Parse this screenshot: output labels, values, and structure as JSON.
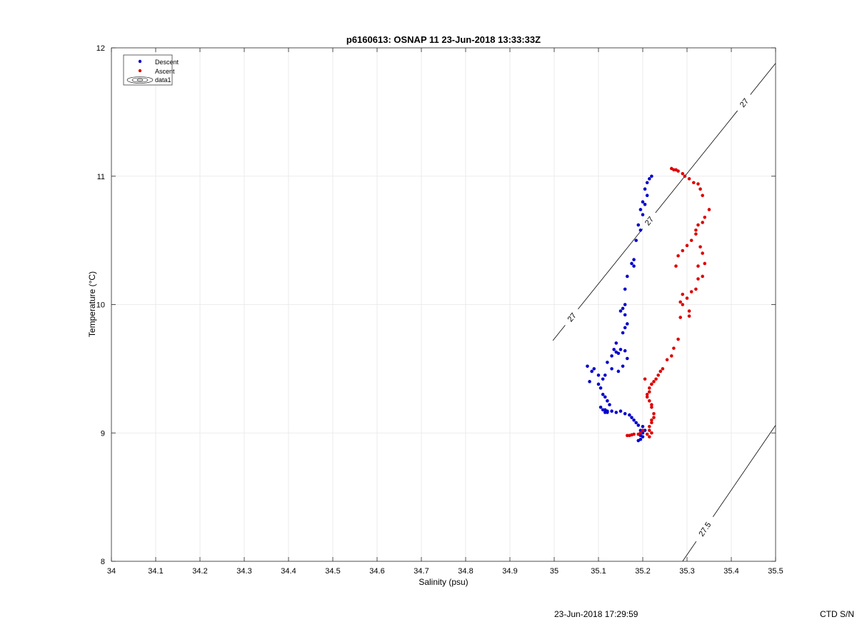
{
  "chart_data": {
    "type": "scatter",
    "title": "p6160613: OSNAP 11 23-Jun-2018 13:33:33Z",
    "xlabel": "Salinity (psu)",
    "ylabel": "Temperature (°C)",
    "xlim": [
      34,
      35.5
    ],
    "ylim": [
      8,
      12
    ],
    "xticks": [
      "34",
      "34.1",
      "34.2",
      "34.3",
      "34.4",
      "34.5",
      "34.6",
      "34.7",
      "34.8",
      "34.9",
      "35",
      "35.1",
      "35.2",
      "35.3",
      "35.4",
      "35.5"
    ],
    "yticks": [
      "8",
      "9",
      "10",
      "11",
      "12"
    ],
    "grid": true,
    "legend": {
      "placement": "top-left",
      "entries": [
        "Descent",
        "Ascent",
        "data1"
      ]
    },
    "colors": {
      "descent": "#0000cc",
      "ascent": "#dd0000",
      "contour": "#000000",
      "grid": "#e6e6e6"
    },
    "series": [
      {
        "name": "Descent",
        "x": [
          35.22,
          35.215,
          35.21,
          35.205,
          35.21,
          35.2,
          35.205,
          35.195,
          35.2,
          35.19,
          35.195,
          35.185,
          35.18,
          35.18,
          35.175,
          35.165,
          35.16,
          35.16,
          35.155,
          35.15,
          35.16,
          35.165,
          35.16,
          35.155,
          35.14,
          35.135,
          35.14,
          35.13,
          35.145,
          35.15,
          35.16,
          35.165,
          35.155,
          35.145,
          35.13,
          35.12,
          35.115,
          35.11,
          35.1,
          35.09,
          35.085,
          35.075,
          35.08,
          35.1,
          35.105,
          35.11,
          35.12,
          35.125,
          35.115,
          35.105,
          35.11,
          35.115,
          35.12,
          35.115,
          35.12,
          35.13,
          35.14,
          35.15,
          35.16,
          35.17,
          35.175,
          35.18,
          35.185,
          35.19,
          35.2,
          35.205,
          35.2,
          35.195,
          35.2,
          35.195,
          35.19,
          35.195
        ],
        "y": [
          11.0,
          10.98,
          10.95,
          10.9,
          10.85,
          10.8,
          10.78,
          10.74,
          10.7,
          10.62,
          10.58,
          10.5,
          10.35,
          10.3,
          10.32,
          10.22,
          10.12,
          10.0,
          9.97,
          9.95,
          9.92,
          9.85,
          9.82,
          9.78,
          9.7,
          9.65,
          9.63,
          9.6,
          9.62,
          9.65,
          9.64,
          9.58,
          9.52,
          9.48,
          9.5,
          9.55,
          9.45,
          9.42,
          9.45,
          9.5,
          9.48,
          9.52,
          9.4,
          9.38,
          9.35,
          9.3,
          9.25,
          9.22,
          9.28,
          9.2,
          9.18,
          9.16,
          9.17,
          9.18,
          9.16,
          9.17,
          9.16,
          9.17,
          9.15,
          9.14,
          9.12,
          9.1,
          9.08,
          9.06,
          9.05,
          9.02,
          9.0,
          8.98,
          8.97,
          8.95,
          8.94,
          9.02
        ]
      },
      {
        "name": "Ascent",
        "x": [
          35.265,
          35.27,
          35.275,
          35.28,
          35.29,
          35.295,
          35.305,
          35.315,
          35.325,
          35.33,
          35.335,
          35.35,
          35.34,
          35.335,
          35.325,
          35.32,
          35.31,
          35.3,
          35.29,
          35.28,
          35.275,
          35.32,
          35.33,
          35.335,
          35.34,
          35.325,
          35.335,
          35.32,
          35.325,
          35.31,
          35.305,
          35.29,
          35.285,
          35.29,
          35.3,
          35.305,
          35.285,
          35.28,
          35.27,
          35.265,
          35.255,
          35.245,
          35.24,
          35.235,
          35.23,
          35.225,
          35.22,
          35.215,
          35.21,
          35.215,
          35.22,
          35.225,
          35.22,
          35.215,
          35.22,
          35.215,
          35.22,
          35.225,
          35.22,
          35.21,
          35.215,
          35.22,
          35.205,
          35.2,
          35.195,
          35.19,
          35.18,
          35.175,
          35.17,
          35.165,
          35.215,
          35.21
        ],
        "y": [
          11.06,
          11.05,
          11.05,
          11.04,
          11.02,
          11.0,
          10.98,
          10.95,
          10.94,
          10.9,
          10.85,
          10.74,
          10.68,
          10.64,
          10.62,
          10.58,
          10.5,
          10.46,
          10.42,
          10.38,
          10.3,
          10.55,
          10.45,
          10.4,
          10.32,
          10.2,
          10.22,
          10.12,
          10.3,
          10.1,
          9.91,
          10.08,
          10.02,
          10.0,
          10.05,
          9.95,
          9.9,
          9.73,
          9.66,
          9.6,
          9.57,
          9.5,
          9.48,
          9.45,
          9.42,
          9.4,
          9.38,
          9.35,
          9.3,
          9.25,
          9.2,
          9.15,
          9.1,
          9.05,
          9.0,
          9.02,
          9.08,
          9.12,
          9.22,
          9.28,
          9.32,
          9.38,
          9.42,
          9.02,
          9.0,
          8.99,
          8.99,
          8.985,
          8.98,
          8.98,
          8.97,
          8.99
        ]
      }
    ],
    "contours": [
      {
        "label": "27",
        "x": [
          34.997,
          35.5
        ],
        "y": [
          9.72,
          11.88
        ],
        "label_positions": [
          [
            35.04,
            9.9
          ],
          [
            35.215,
            10.65
          ],
          [
            35.455,
            11.5
          ]
        ]
      },
      {
        "label": "27.5",
        "x": [
          35.29,
          35.5
        ],
        "y": [
          8.0,
          9.06
        ],
        "label_positions": [
          [
            35.34,
            8.25
          ]
        ]
      }
    ]
  },
  "footer": {
    "timestamp": "23-Jun-2018 17:29:59",
    "ctd": "CTD S/N"
  }
}
